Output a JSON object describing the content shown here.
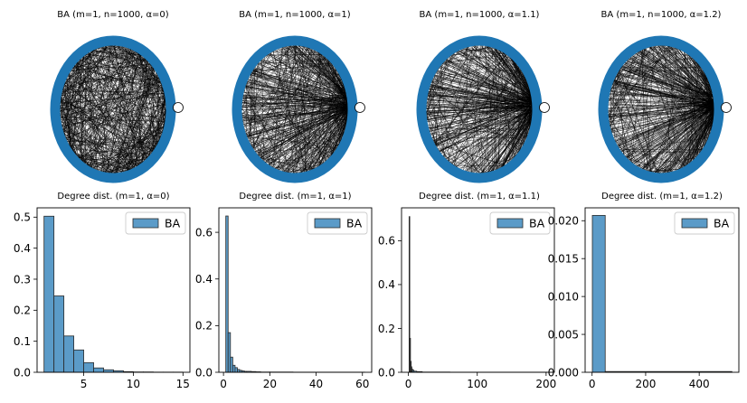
{
  "colors": {
    "node": "#1f77b4",
    "edge": "#000000",
    "bar": "#5b9bc8",
    "bar_edge": "#2a2a2a"
  },
  "networks": [
    {
      "title": "BA (m=1, n=1000, α=0)",
      "alpha": 0
    },
    {
      "title": "BA (m=1, n=1000, α=1)",
      "alpha": 1
    },
    {
      "title": "BA (m=1, n=1000, α=1.1)",
      "alpha": 1.1
    },
    {
      "title": "BA (m=1, n=1000, α=1.2)",
      "alpha": 1.2
    }
  ],
  "chart_data": [
    {
      "type": "bar",
      "title": "Degree dist. (m=1, α=0)",
      "legend": [
        "BA"
      ],
      "legend_position": "top-right",
      "xlim": [
        0.3,
        15.7
      ],
      "ylim": [
        0,
        0.53
      ],
      "xticks": [
        5,
        10,
        15
      ],
      "yticks": [
        0.0,
        0.1,
        0.2,
        0.3,
        0.4,
        0.5
      ],
      "bins": [
        [
          1,
          2
        ],
        [
          2,
          3
        ],
        [
          3,
          4
        ],
        [
          4,
          5
        ],
        [
          5,
          6
        ],
        [
          6,
          7
        ],
        [
          7,
          8
        ],
        [
          8,
          9
        ],
        [
          9,
          10
        ],
        [
          10,
          11
        ],
        [
          11,
          12
        ],
        [
          12,
          13
        ],
        [
          13,
          14
        ],
        [
          14,
          15
        ]
      ],
      "values": [
        0.503,
        0.246,
        0.117,
        0.072,
        0.031,
        0.014,
        0.008,
        0.005,
        0.002,
        0.001,
        0.001,
        0.0005,
        0.0005,
        0.0005
      ]
    },
    {
      "type": "bar",
      "title": "Degree dist. (m=1, α=1)",
      "legend": [
        "BA"
      ],
      "legend_position": "top-right",
      "xlim": [
        -2.0,
        64.0
      ],
      "ylim": [
        0,
        0.705
      ],
      "xticks": [
        0,
        20,
        40,
        60
      ],
      "yticks": [
        0.0,
        0.2,
        0.4,
        0.6
      ],
      "bins": [
        [
          1,
          2
        ],
        [
          2,
          3
        ],
        [
          3,
          4
        ],
        [
          4,
          5
        ],
        [
          5,
          6
        ],
        [
          6,
          7
        ],
        [
          7,
          8
        ],
        [
          8,
          9
        ],
        [
          9,
          10
        ],
        [
          10,
          12
        ],
        [
          12,
          14
        ],
        [
          14,
          16
        ],
        [
          16,
          20
        ],
        [
          20,
          30
        ],
        [
          30,
          61
        ]
      ],
      "values": [
        0.67,
        0.17,
        0.065,
        0.03,
        0.02,
        0.012,
        0.008,
        0.006,
        0.004,
        0.004,
        0.003,
        0.002,
        0.001,
        0.001,
        0.0005
      ]
    },
    {
      "type": "bar",
      "title": "Degree dist. (m=1, α=1.1)",
      "legend": [
        "BA"
      ],
      "legend_position": "top-right",
      "xlim": [
        -10,
        212
      ],
      "ylim": [
        0,
        0.75
      ],
      "xticks": [
        0,
        100,
        200
      ],
      "yticks": [
        0.0,
        0.2,
        0.4,
        0.6
      ],
      "bins": [
        [
          1,
          2
        ],
        [
          2,
          3
        ],
        [
          3,
          4
        ],
        [
          4,
          5
        ],
        [
          5,
          6
        ],
        [
          6,
          8
        ],
        [
          8,
          12
        ],
        [
          12,
          20
        ],
        [
          20,
          60
        ],
        [
          60,
          201
        ]
      ],
      "values": [
        0.71,
        0.155,
        0.05,
        0.025,
        0.015,
        0.01,
        0.005,
        0.003,
        0.001,
        0.0005
      ]
    },
    {
      "type": "bar",
      "title": "Degree dist. (m=1, α=1.2)",
      "legend": [
        "BA"
      ],
      "legend_position": "top-right",
      "xlim": [
        -26,
        548
      ],
      "ylim": [
        0,
        0.0217
      ],
      "xticks": [
        0,
        200,
        400
      ],
      "yticks": [
        0.0,
        0.005,
        0.01,
        0.015,
        0.02
      ],
      "ytick_labels": [
        "0.000",
        "0.005",
        "0.010",
        "0.015",
        "0.020"
      ],
      "bins": [
        [
          1,
          49
        ],
        [
          49,
          522
        ]
      ],
      "values": [
        0.0207,
        0.0001
      ]
    }
  ]
}
